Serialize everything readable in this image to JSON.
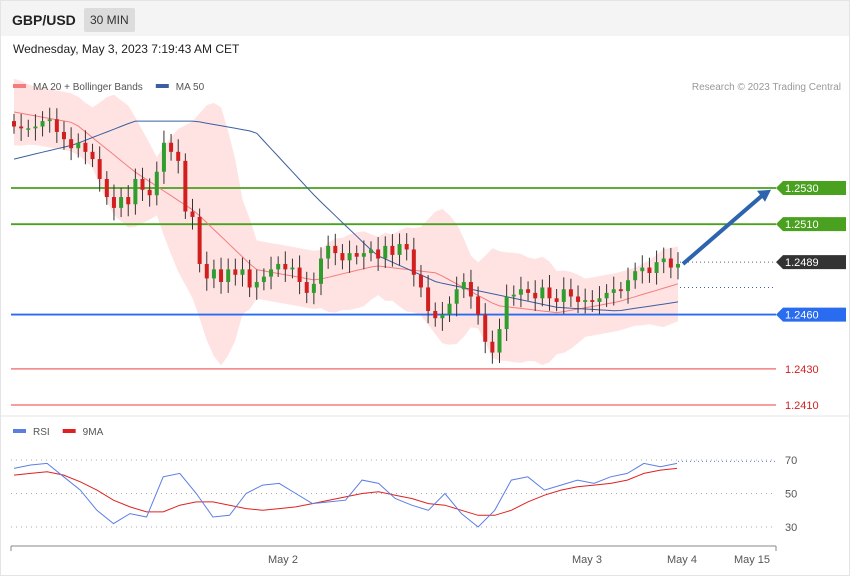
{
  "header": {
    "symbol": "GBP/USD",
    "timeframe": "30 MIN"
  },
  "datetime": "Wednesday, May 3, 2023 7:19:43 AM CET",
  "credit": "Research © 2023 Trading Central",
  "colors": {
    "ma20": "#f47c7c",
    "ma50": "#3b5fa0",
    "band_fill": "#ffe3e3",
    "up": "#2f9e2f",
    "down": "#d11f1f",
    "resistance": "#4aa11f",
    "pivot": "#2a6cef",
    "support": "#f08080",
    "support_text": "#d11f1f",
    "current": "#333333",
    "arrow": "#2e64ad",
    "rsi": "#5b7ee5",
    "rsi_ma": "#e02020"
  },
  "chart_data": [
    {
      "type": "candlestick",
      "legend": [
        {
          "label": "MA 20 + Bollinger Bands",
          "color": "#f47c7c"
        },
        {
          "label": "MA 50",
          "color": "#3b5fa0"
        }
      ],
      "legend_position": "top-left",
      "ylim": [
        1.24,
        1.259
      ],
      "levels": [
        {
          "label": "1.2530",
          "value": 1.253,
          "kind": "resistance"
        },
        {
          "label": "1.2510",
          "value": 1.251,
          "kind": "resistance"
        },
        {
          "label": "1.2489",
          "value": 1.2489,
          "kind": "current"
        },
        {
          "label": "1.2460",
          "value": 1.246,
          "kind": "pivot"
        },
        {
          "label": "1.2430",
          "value": 1.243,
          "kind": "support"
        },
        {
          "label": "1.2410",
          "value": 1.241,
          "kind": "support"
        }
      ],
      "close_series": [
        1.2564,
        1.2563,
        1.2563,
        1.2564,
        1.2567,
        1.2568,
        1.2561,
        1.2557,
        1.2552,
        1.2555,
        1.255,
        1.2546,
        1.2535,
        1.2525,
        1.2519,
        1.2525,
        1.2521,
        1.2535,
        1.2529,
        1.2526,
        1.2539,
        1.2555,
        1.255,
        1.2545,
        1.2517,
        1.2514,
        1.2488,
        1.248,
        1.2485,
        1.2478,
        1.2485,
        1.2482,
        1.2485,
        1.2475,
        1.2478,
        1.2481,
        1.2485,
        1.2488,
        1.2485,
        1.2486,
        1.2478,
        1.2472,
        1.2477,
        1.2491,
        1.2498,
        1.2494,
        1.249,
        1.2494,
        1.2492,
        1.2494,
        1.2496,
        1.2491,
        1.2498,
        1.2493,
        1.2499,
        1.2496,
        1.2482,
        1.2475,
        1.2462,
        1.2458,
        1.246,
        1.2466,
        1.2474,
        1.2478,
        1.247,
        1.246,
        1.2445,
        1.2439,
        1.2452,
        1.247,
        1.2471,
        1.2474,
        1.2472,
        1.2469,
        1.2475,
        1.2469,
        1.2467,
        1.2474,
        1.247,
        1.2467,
        1.2468,
        1.2467,
        1.2469,
        1.2472,
        1.2474,
        1.2473,
        1.2479,
        1.2484,
        1.2486,
        1.2483,
        1.2489,
        1.2491,
        1.2486,
        1.2488
      ],
      "ma50_series": [
        1.2546,
        1.2554,
        1.2567,
        1.2567,
        1.2561,
        1.2525,
        1.2493,
        1.2478,
        1.2471,
        1.2464,
        1.2462,
        1.2467
      ],
      "ma20_series": [
        1.2572,
        1.2566,
        1.2539,
        1.2517,
        1.2485,
        1.2479,
        1.2487,
        1.2483,
        1.2465,
        1.2461,
        1.2467,
        1.2477
      ]
    },
    {
      "type": "line",
      "legend": [
        {
          "label": "RSI",
          "color": "#5b7ee5"
        },
        {
          "label": "9MA",
          "color": "#e02020"
        }
      ],
      "ylim": [
        20,
        80
      ],
      "yticks": [
        "70",
        "50",
        "30"
      ],
      "xticks": [
        "May 2",
        "May 3",
        "May 4",
        "May 15"
      ],
      "rsi_series": [
        65,
        67,
        68,
        60,
        52,
        40,
        32,
        38,
        36,
        60,
        62,
        50,
        36,
        37,
        50,
        55,
        56,
        50,
        44,
        45,
        46,
        58,
        56,
        47,
        43,
        40,
        50,
        38,
        30,
        40,
        58,
        60,
        52,
        55,
        58,
        56,
        60,
        62,
        68,
        66,
        68
      ],
      "rsi_ma_series": [
        61,
        62,
        63,
        61,
        57,
        52,
        46,
        42,
        39,
        39,
        43,
        45,
        45,
        43,
        41,
        40,
        41,
        42,
        44,
        46,
        48,
        50,
        51,
        49,
        47,
        44,
        43,
        40,
        37,
        37,
        40,
        45,
        49,
        52,
        54,
        55,
        56,
        58,
        62,
        64,
        65
      ]
    }
  ]
}
